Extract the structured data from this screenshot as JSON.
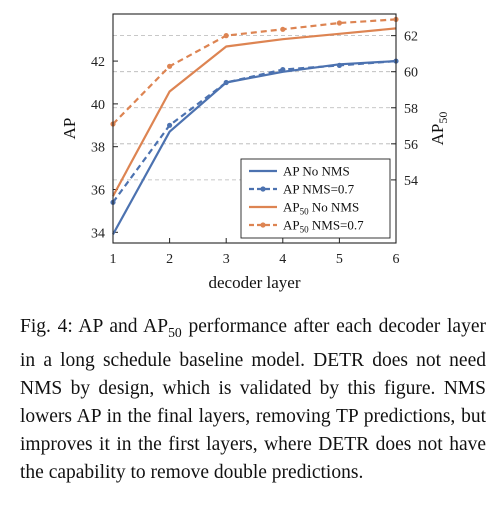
{
  "chart_data": {
    "type": "line",
    "xlabel": "decoder layer",
    "ylabel": "AP",
    "y2label": "AP",
    "y2label_sub": "50",
    "x": [
      1,
      2,
      3,
      4,
      5,
      6
    ],
    "xlim": [
      1,
      6
    ],
    "ylim": [
      33.5,
      44.2
    ],
    "y2lim": [
      50.5,
      63.2
    ],
    "yticks": [
      34,
      36,
      38,
      40,
      42
    ],
    "y2ticks": [
      54,
      56,
      58,
      60,
      62
    ],
    "grid": "horizontal dashed",
    "legend_position": "lower-right",
    "series": [
      {
        "name": "AP No NMS",
        "name_main": "AP",
        "name_sub": "",
        "name_rest": " No NMS",
        "axis": "left",
        "color": "#4C72B0",
        "style": "solid",
        "marker": "none",
        "values": [
          33.9,
          38.7,
          41.0,
          41.5,
          41.85,
          42.0
        ]
      },
      {
        "name": "AP NMS=0.7",
        "name_main": "AP",
        "name_sub": "",
        "name_rest": " NMS=0.7",
        "axis": "left",
        "color": "#4C72B0",
        "style": "dashed",
        "marker": "dot",
        "values": [
          35.4,
          39.0,
          41.0,
          41.6,
          41.8,
          42.0
        ]
      },
      {
        "name": "AP50 No NMS",
        "name_main": "AP",
        "name_sub": "50",
        "name_rest": " No NMS",
        "axis": "right",
        "color": "#DD8452",
        "style": "solid",
        "marker": "none",
        "values": [
          53.1,
          58.9,
          61.4,
          61.8,
          62.1,
          62.4
        ]
      },
      {
        "name": "AP50 NMS=0.7",
        "name_main": "AP",
        "name_sub": "50",
        "name_rest": " NMS=0.7",
        "axis": "right",
        "color": "#DD8452",
        "style": "dashed",
        "marker": "dot",
        "values": [
          57.1,
          60.3,
          62.0,
          62.35,
          62.7,
          62.9
        ]
      }
    ]
  },
  "caption": {
    "fig_label": "Fig. 4:",
    "text_1": " AP and AP",
    "sub_1": "50",
    "text_2": " performance after each decoder layer in a long schedule baseline model. DETR does not need NMS by design, which is validated by this figure. NMS lowers AP in the final layers, removing TP predictions, but improves it in the first layers, where DETR does not have the capability to remove double predictions."
  }
}
